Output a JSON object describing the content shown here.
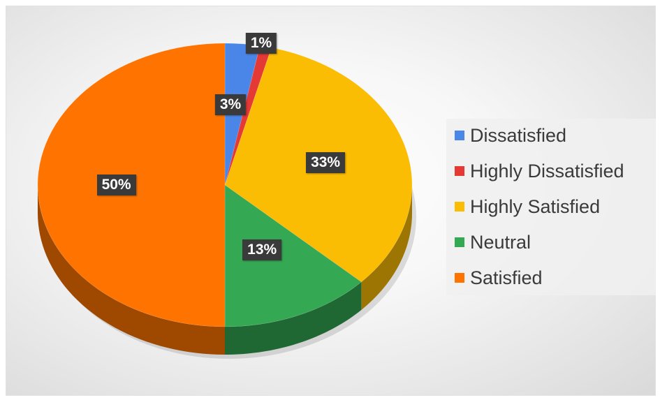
{
  "chart_data": {
    "type": "pie",
    "style": "3d",
    "categories": [
      "Dissatisfied",
      "Highly Dissatisfied",
      "Highly Satisfied",
      "Neutral",
      "Satisfied"
    ],
    "values": [
      3,
      1,
      33,
      13,
      50
    ],
    "labels": [
      "3%",
      "1%",
      "33%",
      "13%",
      "50%"
    ],
    "colors": [
      "#4a86e8",
      "#e53935",
      "#fbbc04",
      "#34a853",
      "#ff7400"
    ],
    "title": "",
    "legend_position": "right"
  }
}
